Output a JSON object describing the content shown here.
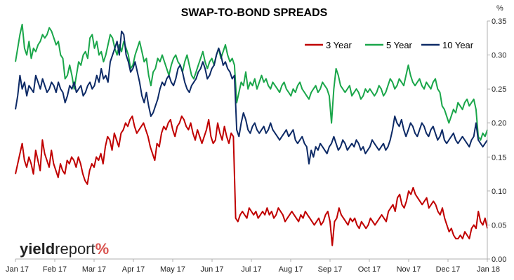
{
  "chart_data": {
    "type": "line",
    "title": "SWAP-TO-BOND SPREADS",
    "y_unit_label": "%",
    "ylim": [
      0,
      0.35
    ],
    "y_ticks": [
      "0.00",
      "0.05",
      "0.10",
      "0.15",
      "0.20",
      "0.25",
      "0.30",
      "0.35"
    ],
    "x_ticks": [
      "Jan 17",
      "Feb 17",
      "Mar 17",
      "Apr 17",
      "May 17",
      "Jun 17",
      "Jul 17",
      "Aug 17",
      "Sep 17",
      "Oct 17",
      "Nov 17",
      "Dec 17",
      "Jan 18"
    ],
    "legend_position": "top-right",
    "grid": false,
    "series": [
      {
        "name": "3 Year",
        "color": "#c00000",
        "values": [
          0.125,
          0.14,
          0.155,
          0.17,
          0.145,
          0.135,
          0.15,
          0.14,
          0.125,
          0.16,
          0.145,
          0.13,
          0.175,
          0.155,
          0.145,
          0.135,
          0.16,
          0.14,
          0.13,
          0.12,
          0.14,
          0.13,
          0.125,
          0.145,
          0.14,
          0.15,
          0.145,
          0.135,
          0.15,
          0.14,
          0.125,
          0.115,
          0.11,
          0.13,
          0.14,
          0.135,
          0.15,
          0.145,
          0.155,
          0.14,
          0.165,
          0.18,
          0.175,
          0.16,
          0.185,
          0.175,
          0.165,
          0.185,
          0.19,
          0.2,
          0.195,
          0.205,
          0.21,
          0.195,
          0.185,
          0.19,
          0.195,
          0.2,
          0.19,
          0.18,
          0.165,
          0.155,
          0.145,
          0.17,
          0.165,
          0.185,
          0.195,
          0.19,
          0.2,
          0.205,
          0.19,
          0.18,
          0.195,
          0.2,
          0.21,
          0.205,
          0.195,
          0.19,
          0.2,
          0.185,
          0.175,
          0.19,
          0.18,
          0.17,
          0.18,
          0.19,
          0.205,
          0.18,
          0.17,
          0.175,
          0.2,
          0.185,
          0.175,
          0.195,
          0.18,
          0.17,
          0.185,
          0.18,
          0.06,
          0.055,
          0.065,
          0.07,
          0.065,
          0.06,
          0.075,
          0.07,
          0.065,
          0.07,
          0.06,
          0.065,
          0.07,
          0.065,
          0.075,
          0.065,
          0.07,
          0.06,
          0.065,
          0.075,
          0.07,
          0.065,
          0.055,
          0.06,
          0.065,
          0.07,
          0.065,
          0.06,
          0.055,
          0.065,
          0.06,
          0.07,
          0.065,
          0.06,
          0.055,
          0.05,
          0.055,
          0.06,
          0.05,
          0.055,
          0.065,
          0.07,
          0.055,
          0.02,
          0.055,
          0.06,
          0.075,
          0.065,
          0.06,
          0.055,
          0.05,
          0.06,
          0.055,
          0.06,
          0.05,
          0.045,
          0.055,
          0.05,
          0.045,
          0.05,
          0.06,
          0.055,
          0.05,
          0.055,
          0.06,
          0.065,
          0.06,
          0.055,
          0.07,
          0.075,
          0.08,
          0.07,
          0.09,
          0.095,
          0.08,
          0.075,
          0.085,
          0.1,
          0.095,
          0.105,
          0.095,
          0.09,
          0.085,
          0.08,
          0.085,
          0.09,
          0.075,
          0.08,
          0.085,
          0.08,
          0.07,
          0.065,
          0.075,
          0.06,
          0.05,
          0.04,
          0.045,
          0.035,
          0.03,
          0.03,
          0.035,
          0.03,
          0.04,
          0.035,
          0.03,
          0.045,
          0.05,
          0.045,
          0.07,
          0.055,
          0.05,
          0.06,
          0.045
        ]
      },
      {
        "name": "5 Year",
        "color": "#1aa64a",
        "values": [
          0.29,
          0.31,
          0.33,
          0.345,
          0.31,
          0.3,
          0.32,
          0.295,
          0.31,
          0.305,
          0.315,
          0.32,
          0.33,
          0.325,
          0.33,
          0.34,
          0.335,
          0.325,
          0.315,
          0.32,
          0.3,
          0.295,
          0.265,
          0.27,
          0.285,
          0.27,
          0.25,
          0.27,
          0.29,
          0.285,
          0.3,
          0.305,
          0.295,
          0.325,
          0.33,
          0.31,
          0.32,
          0.3,
          0.305,
          0.29,
          0.3,
          0.315,
          0.33,
          0.325,
          0.31,
          0.3,
          0.315,
          0.305,
          0.32,
          0.31,
          0.3,
          0.28,
          0.285,
          0.3,
          0.31,
          0.32,
          0.305,
          0.29,
          0.295,
          0.27,
          0.255,
          0.275,
          0.28,
          0.295,
          0.29,
          0.3,
          0.29,
          0.28,
          0.27,
          0.285,
          0.295,
          0.3,
          0.29,
          0.285,
          0.275,
          0.29,
          0.3,
          0.285,
          0.27,
          0.265,
          0.275,
          0.285,
          0.295,
          0.305,
          0.29,
          0.28,
          0.29,
          0.295,
          0.285,
          0.3,
          0.31,
          0.295,
          0.305,
          0.315,
          0.3,
          0.29,
          0.295,
          0.285,
          0.23,
          0.245,
          0.26,
          0.255,
          0.275,
          0.25,
          0.26,
          0.255,
          0.265,
          0.25,
          0.26,
          0.27,
          0.26,
          0.265,
          0.255,
          0.25,
          0.26,
          0.255,
          0.25,
          0.245,
          0.255,
          0.26,
          0.25,
          0.245,
          0.24,
          0.25,
          0.245,
          0.255,
          0.26,
          0.25,
          0.245,
          0.24,
          0.235,
          0.245,
          0.25,
          0.255,
          0.245,
          0.25,
          0.26,
          0.255,
          0.25,
          0.24,
          0.2,
          0.25,
          0.28,
          0.27,
          0.255,
          0.25,
          0.245,
          0.25,
          0.255,
          0.24,
          0.245,
          0.25,
          0.245,
          0.235,
          0.24,
          0.25,
          0.245,
          0.25,
          0.245,
          0.24,
          0.245,
          0.255,
          0.25,
          0.24,
          0.245,
          0.255,
          0.265,
          0.26,
          0.25,
          0.255,
          0.265,
          0.26,
          0.255,
          0.27,
          0.285,
          0.27,
          0.26,
          0.255,
          0.26,
          0.265,
          0.255,
          0.25,
          0.26,
          0.255,
          0.25,
          0.26,
          0.265,
          0.25,
          0.245,
          0.225,
          0.22,
          0.21,
          0.2,
          0.21,
          0.22,
          0.215,
          0.23,
          0.225,
          0.22,
          0.23,
          0.235,
          0.225,
          0.23,
          0.235,
          0.22,
          0.18,
          0.175,
          0.185,
          0.18,
          0.19
        ]
      },
      {
        "name": "10 Year",
        "color": "#0d2a66",
        "values": [
          0.22,
          0.24,
          0.27,
          0.25,
          0.26,
          0.24,
          0.255,
          0.25,
          0.245,
          0.27,
          0.26,
          0.25,
          0.265,
          0.255,
          0.245,
          0.25,
          0.26,
          0.255,
          0.245,
          0.26,
          0.25,
          0.245,
          0.23,
          0.24,
          0.255,
          0.25,
          0.26,
          0.245,
          0.25,
          0.255,
          0.24,
          0.245,
          0.255,
          0.26,
          0.25,
          0.255,
          0.27,
          0.26,
          0.28,
          0.265,
          0.27,
          0.26,
          0.29,
          0.3,
          0.31,
          0.32,
          0.3,
          0.335,
          0.33,
          0.3,
          0.29,
          0.275,
          0.28,
          0.29,
          0.275,
          0.26,
          0.24,
          0.23,
          0.245,
          0.225,
          0.21,
          0.215,
          0.225,
          0.235,
          0.25,
          0.26,
          0.255,
          0.265,
          0.27,
          0.26,
          0.255,
          0.265,
          0.28,
          0.285,
          0.275,
          0.26,
          0.25,
          0.245,
          0.255,
          0.26,
          0.265,
          0.275,
          0.28,
          0.29,
          0.28,
          0.265,
          0.27,
          0.28,
          0.285,
          0.3,
          0.31,
          0.3,
          0.285,
          0.29,
          0.28,
          0.275,
          0.265,
          0.27,
          0.19,
          0.18,
          0.2,
          0.215,
          0.205,
          0.19,
          0.185,
          0.195,
          0.2,
          0.19,
          0.185,
          0.19,
          0.195,
          0.185,
          0.19,
          0.2,
          0.19,
          0.185,
          0.18,
          0.175,
          0.18,
          0.185,
          0.19,
          0.18,
          0.185,
          0.19,
          0.175,
          0.17,
          0.175,
          0.18,
          0.17,
          0.165,
          0.14,
          0.16,
          0.15,
          0.165,
          0.16,
          0.17,
          0.165,
          0.16,
          0.155,
          0.165,
          0.17,
          0.18,
          0.17,
          0.16,
          0.165,
          0.175,
          0.17,
          0.16,
          0.165,
          0.17,
          0.165,
          0.175,
          0.17,
          0.16,
          0.165,
          0.155,
          0.16,
          0.165,
          0.175,
          0.17,
          0.165,
          0.16,
          0.165,
          0.17,
          0.16,
          0.165,
          0.175,
          0.19,
          0.21,
          0.2,
          0.195,
          0.205,
          0.19,
          0.18,
          0.19,
          0.2,
          0.195,
          0.185,
          0.18,
          0.19,
          0.2,
          0.195,
          0.185,
          0.18,
          0.19,
          0.195,
          0.185,
          0.175,
          0.18,
          0.19,
          0.175,
          0.17,
          0.175,
          0.18,
          0.185,
          0.175,
          0.17,
          0.175,
          0.18,
          0.175,
          0.17,
          0.165,
          0.175,
          0.18,
          0.2,
          0.175,
          0.17,
          0.165,
          0.17,
          0.175
        ]
      }
    ]
  },
  "logo": {
    "part1": "yield",
    "part2": "report",
    "part3": "%",
    "color1": "#222222",
    "color2": "#d9534f"
  }
}
